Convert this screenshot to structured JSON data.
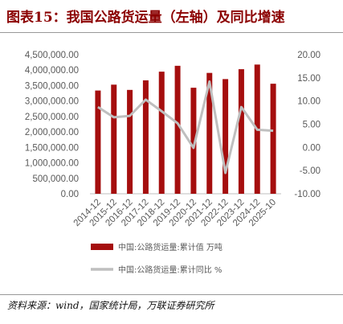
{
  "title": "图表15：我国公路货运量（左轴）及同比增速",
  "source": "资料来源：wind，国家统计局，万联证券研究所",
  "chart_data": {
    "type": "bar+line",
    "categories": [
      "2014-12",
      "2015-12",
      "2016-12",
      "2017-12",
      "2018-12",
      "2019-12",
      "2020-12",
      "2021-12",
      "2022-12",
      "2023-12",
      "2024-12",
      "2025-10"
    ],
    "series": [
      {
        "name": "中国:公路货运量:累计值 万吨",
        "type": "bar",
        "axis": "left",
        "color": "#a50e0e",
        "values": [
          3340000,
          3530000,
          3360000,
          3670000,
          3950000,
          4140000,
          3430000,
          3910000,
          3710000,
          4030000,
          4180000,
          3560000
        ]
      },
      {
        "name": "中国:公路货运量:累计同比 %",
        "type": "line",
        "axis": "right",
        "color": "#bfbfbf",
        "values": [
          8.7,
          6.5,
          6.8,
          10.3,
          7.8,
          5.2,
          -0.1,
          14.2,
          -5.5,
          8.7,
          3.8,
          3.6
        ]
      }
    ],
    "left_axis": {
      "min": 0,
      "max": 4500000,
      "ticks": [
        "0.00",
        "500,000.00",
        "1,000,000.00",
        "1,500,000.00",
        "2,000,000.00",
        "2,500,000.00",
        "3,000,000.00",
        "3,500,000.00",
        "4,000,000.00",
        "4,500,000.00"
      ]
    },
    "right_axis": {
      "min": -10,
      "max": 20,
      "ticks": [
        "-10.00",
        "-5.00",
        "0.00",
        "5.00",
        "10.00",
        "15.00",
        "20.00"
      ]
    },
    "legend_position": "bottom",
    "grid": false
  }
}
